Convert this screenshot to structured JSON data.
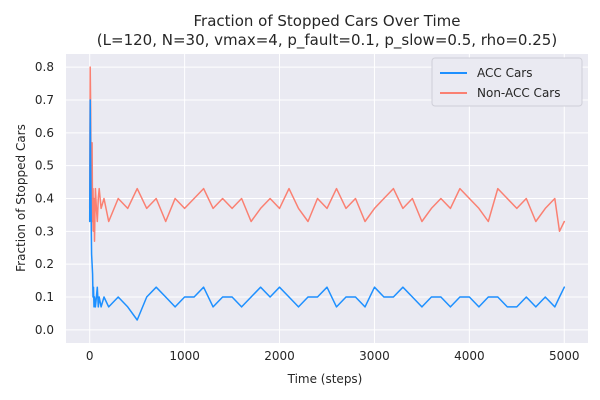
{
  "chart_data": {
    "type": "line",
    "title": "Fraction of Stopped Cars Over Time",
    "subtitle": "(L=120, N=30, vmax=4, p_fault=0.1, p_slow=0.5, rho=0.25)",
    "xlabel": "Time (steps)",
    "ylabel": "Fraction of Stopped Cars",
    "xlim": [
      -250,
      5250
    ],
    "ylim": [
      -0.04,
      0.84
    ],
    "xticks": [
      0,
      1000,
      2000,
      3000,
      4000,
      5000
    ],
    "yticks": [
      0.0,
      0.1,
      0.2,
      0.3,
      0.4,
      0.5,
      0.6,
      0.7,
      0.8
    ],
    "grid": true,
    "background": "#eaeaf2",
    "legend_position": "top-right",
    "series": [
      {
        "name": "Non-ACC Cars",
        "color": "#fa8072",
        "x": [
          0,
          5,
          10,
          15,
          20,
          25,
          30,
          35,
          40,
          45,
          50,
          60,
          70,
          80,
          90,
          100,
          120,
          150,
          200,
          300,
          400,
          500,
          600,
          700,
          800,
          900,
          1000,
          1100,
          1200,
          1300,
          1400,
          1500,
          1600,
          1700,
          1800,
          1900,
          2000,
          2100,
          2200,
          2300,
          2400,
          2500,
          2600,
          2700,
          2800,
          2900,
          3000,
          3100,
          3200,
          3300,
          3400,
          3500,
          3600,
          3700,
          3800,
          3900,
          4000,
          4100,
          4200,
          4300,
          4400,
          4500,
          4600,
          4700,
          4800,
          4900,
          4950,
          5000
        ],
        "values": [
          0.37,
          0.8,
          0.67,
          0.4,
          0.3,
          0.57,
          0.33,
          0.43,
          0.3,
          0.4,
          0.27,
          0.43,
          0.37,
          0.33,
          0.4,
          0.43,
          0.37,
          0.4,
          0.33,
          0.4,
          0.37,
          0.43,
          0.37,
          0.4,
          0.33,
          0.4,
          0.37,
          0.4,
          0.43,
          0.37,
          0.4,
          0.37,
          0.4,
          0.33,
          0.37,
          0.4,
          0.37,
          0.43,
          0.37,
          0.33,
          0.4,
          0.37,
          0.43,
          0.37,
          0.4,
          0.33,
          0.37,
          0.4,
          0.43,
          0.37,
          0.4,
          0.33,
          0.37,
          0.4,
          0.37,
          0.43,
          0.4,
          0.37,
          0.33,
          0.43,
          0.4,
          0.37,
          0.4,
          0.33,
          0.37,
          0.4,
          0.3,
          0.33
        ]
      },
      {
        "name": "ACC Cars",
        "color": "#1e90ff",
        "x": [
          0,
          5,
          10,
          15,
          20,
          25,
          30,
          35,
          40,
          45,
          50,
          60,
          70,
          80,
          90,
          100,
          120,
          150,
          200,
          300,
          400,
          500,
          600,
          700,
          800,
          900,
          1000,
          1100,
          1200,
          1300,
          1400,
          1500,
          1600,
          1700,
          1800,
          1900,
          2000,
          2100,
          2200,
          2300,
          2400,
          2500,
          2600,
          2700,
          2800,
          2900,
          3000,
          3100,
          3200,
          3300,
          3400,
          3500,
          3600,
          3700,
          3800,
          3900,
          4000,
          4100,
          4200,
          4300,
          4400,
          4500,
          4600,
          4700,
          4800,
          4900,
          4950,
          5000
        ],
        "values": [
          0.33,
          0.7,
          0.5,
          0.33,
          0.23,
          0.2,
          0.17,
          0.1,
          0.13,
          0.07,
          0.1,
          0.07,
          0.1,
          0.13,
          0.07,
          0.1,
          0.07,
          0.1,
          0.07,
          0.1,
          0.07,
          0.03,
          0.1,
          0.13,
          0.1,
          0.07,
          0.1,
          0.1,
          0.13,
          0.07,
          0.1,
          0.1,
          0.07,
          0.1,
          0.13,
          0.1,
          0.13,
          0.1,
          0.07,
          0.1,
          0.1,
          0.13,
          0.07,
          0.1,
          0.1,
          0.07,
          0.13,
          0.1,
          0.1,
          0.13,
          0.1,
          0.07,
          0.1,
          0.1,
          0.07,
          0.1,
          0.1,
          0.07,
          0.1,
          0.1,
          0.07,
          0.07,
          0.1,
          0.07,
          0.1,
          0.07,
          0.1,
          0.13
        ]
      }
    ]
  }
}
